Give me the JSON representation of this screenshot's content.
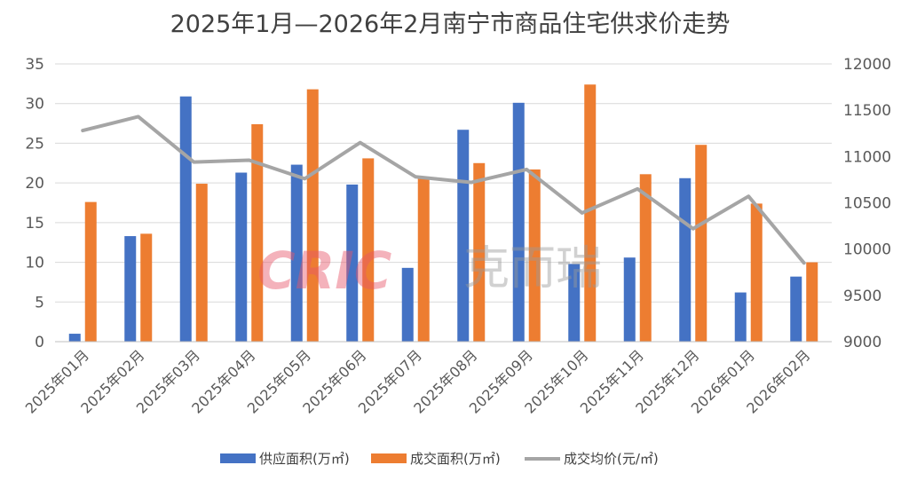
{
  "chart_data": {
    "type": "bar+line",
    "title": "2025年1月—2026年2月南宁市商品住宅供求价走势",
    "categories": [
      "2025年01月",
      "2025年02月",
      "2025年03月",
      "2025年04月",
      "2025年05月",
      "2025年06月",
      "2025年07月",
      "2025年08月",
      "2025年09月",
      "2025年10月",
      "2025年11月",
      "2025年12月",
      "2026年01月",
      "2026年02月"
    ],
    "series": [
      {
        "name": "供应面积(万㎡)",
        "type": "bar",
        "axis": "left",
        "color": "#4472c4",
        "values": [
          1.0,
          13.3,
          30.9,
          21.3,
          22.3,
          19.8,
          9.3,
          26.7,
          30.1,
          9.8,
          10.6,
          20.6,
          6.2,
          8.2
        ]
      },
      {
        "name": "成交面积(万㎡)",
        "type": "bar",
        "axis": "left",
        "color": "#ed7d31",
        "values": [
          17.6,
          13.6,
          19.9,
          27.4,
          31.8,
          23.1,
          20.7,
          22.5,
          21.7,
          32.4,
          21.1,
          24.8,
          17.4,
          10.0
        ]
      },
      {
        "name": "成交均价(元/㎡)",
        "type": "line",
        "axis": "right",
        "color": "#a5a5a5",
        "values": [
          11280,
          11430,
          10940,
          10960,
          10760,
          11150,
          10780,
          10720,
          10860,
          10390,
          10650,
          10220,
          10570,
          9850
        ]
      }
    ],
    "y_left": {
      "min": 0,
      "max": 35,
      "ticks": [
        0,
        5,
        10,
        15,
        20,
        25,
        30,
        35
      ]
    },
    "y_right": {
      "min": 9000,
      "max": 12000,
      "ticks": [
        9000,
        9500,
        10000,
        10500,
        11000,
        11500,
        12000
      ]
    },
    "legend_position": "bottom",
    "grid": true
  },
  "watermark": {
    "latin": "CRIC",
    "cjk": "克而瑞"
  }
}
